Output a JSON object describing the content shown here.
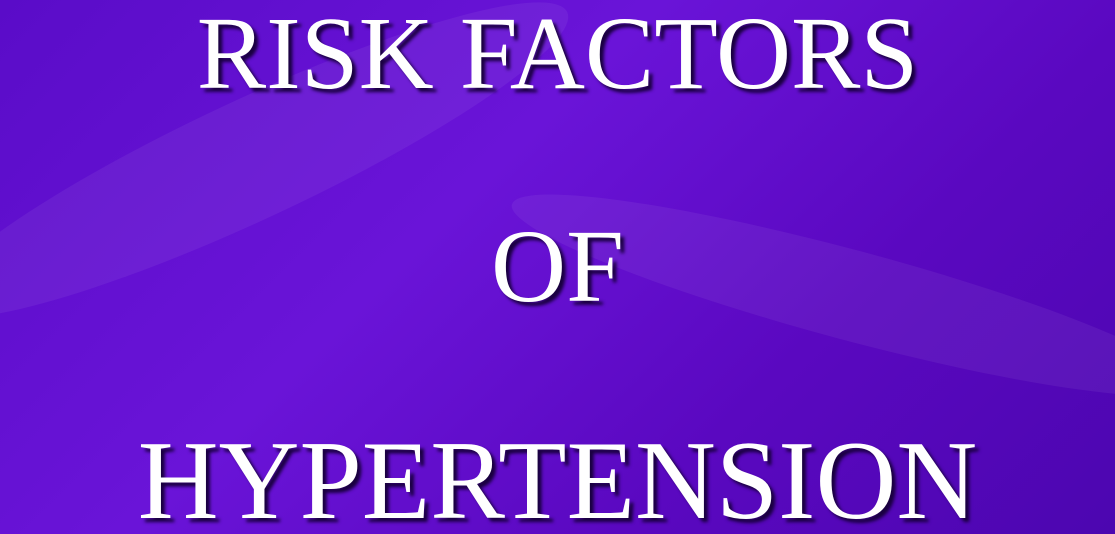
{
  "slide": {
    "lines": [
      "RISK FACTORS",
      "OF",
      "HYPERTENSION"
    ]
  }
}
